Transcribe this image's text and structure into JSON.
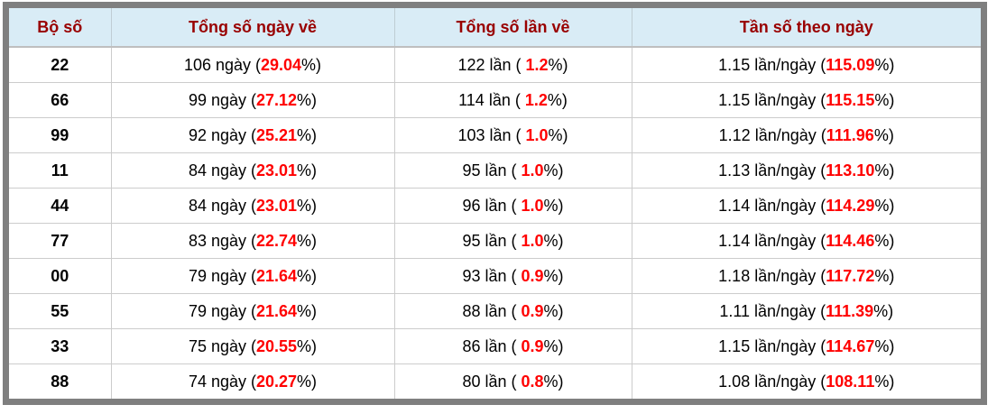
{
  "colors": {
    "header_bg": "#d9ecf6",
    "header_text": "#990000",
    "highlight_red": "#ff0000",
    "frame_gray": "#7f7f7f",
    "cell_border": "#cccccc"
  },
  "table": {
    "columns": [
      {
        "label": "Bộ số"
      },
      {
        "label": "Tổng số ngày về"
      },
      {
        "label": "Tổng số lần về"
      },
      {
        "label": "Tần số theo ngày"
      }
    ],
    "cell_names": [
      "days-cell",
      "times-cell",
      "freq-cell"
    ],
    "rows": [
      {
        "pair": "22",
        "cells": [
          {
            "pre": "106 ngày (",
            "red": "29.04",
            "post": "%)"
          },
          {
            "pre": "122 lần ( ",
            "red": "1.2",
            "post": "%)"
          },
          {
            "pre": "1.15 lần/ngày (",
            "red": "115.09",
            "post": "%)"
          }
        ]
      },
      {
        "pair": "66",
        "cells": [
          {
            "pre": "99 ngày (",
            "red": "27.12",
            "post": "%)"
          },
          {
            "pre": "114 lần ( ",
            "red": "1.2",
            "post": "%)"
          },
          {
            "pre": "1.15 lần/ngày (",
            "red": "115.15",
            "post": "%)"
          }
        ]
      },
      {
        "pair": "99",
        "cells": [
          {
            "pre": "92 ngày (",
            "red": "25.21",
            "post": "%)"
          },
          {
            "pre": "103 lần ( ",
            "red": "1.0",
            "post": "%)"
          },
          {
            "pre": "1.12 lần/ngày (",
            "red": "111.96",
            "post": "%)"
          }
        ]
      },
      {
        "pair": "11",
        "cells": [
          {
            "pre": "84 ngày (",
            "red": "23.01",
            "post": "%)"
          },
          {
            "pre": "95 lần ( ",
            "red": "1.0",
            "post": "%)"
          },
          {
            "pre": "1.13 lần/ngày (",
            "red": "113.10",
            "post": "%)"
          }
        ]
      },
      {
        "pair": "44",
        "cells": [
          {
            "pre": "84 ngày (",
            "red": "23.01",
            "post": "%)"
          },
          {
            "pre": "96 lần ( ",
            "red": "1.0",
            "post": "%)"
          },
          {
            "pre": "1.14 lần/ngày (",
            "red": "114.29",
            "post": "%)"
          }
        ]
      },
      {
        "pair": "77",
        "cells": [
          {
            "pre": "83 ngày (",
            "red": "22.74",
            "post": "%)"
          },
          {
            "pre": "95 lần ( ",
            "red": "1.0",
            "post": "%)"
          },
          {
            "pre": "1.14 lần/ngày (",
            "red": "114.46",
            "post": "%)"
          }
        ]
      },
      {
        "pair": "00",
        "cells": [
          {
            "pre": "79 ngày (",
            "red": "21.64",
            "post": "%)"
          },
          {
            "pre": "93 lần ( ",
            "red": "0.9",
            "post": "%)"
          },
          {
            "pre": "1.18 lần/ngày (",
            "red": "117.72",
            "post": "%)"
          }
        ]
      },
      {
        "pair": "55",
        "cells": [
          {
            "pre": "79 ngày (",
            "red": "21.64",
            "post": "%)"
          },
          {
            "pre": "88 lần ( ",
            "red": "0.9",
            "post": "%)"
          },
          {
            "pre": "1.11 lần/ngày (",
            "red": "111.39",
            "post": "%)"
          }
        ]
      },
      {
        "pair": "33",
        "cells": [
          {
            "pre": "75 ngày (",
            "red": "20.55",
            "post": "%)"
          },
          {
            "pre": "86 lần ( ",
            "red": "0.9",
            "post": "%)"
          },
          {
            "pre": "1.15 lần/ngày (",
            "red": "114.67",
            "post": "%)"
          }
        ]
      },
      {
        "pair": "88",
        "cells": [
          {
            "pre": "74 ngày (",
            "red": "20.27",
            "post": "%)"
          },
          {
            "pre": "80 lần ( ",
            "red": "0.8",
            "post": "%)"
          },
          {
            "pre": "1.08 lần/ngày (",
            "red": "108.11",
            "post": "%)"
          }
        ]
      }
    ]
  }
}
